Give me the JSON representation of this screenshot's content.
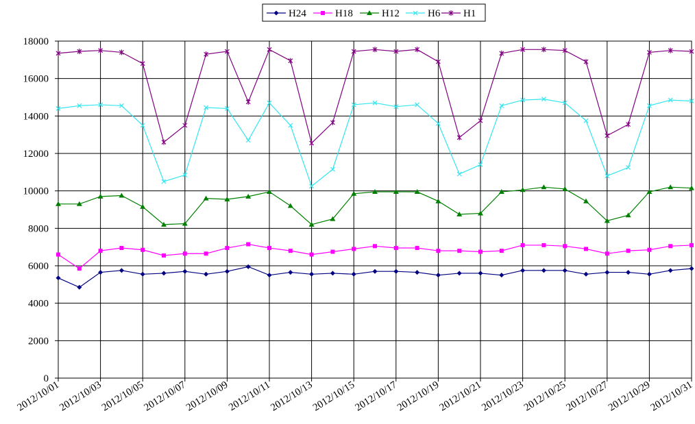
{
  "chart_data": {
    "type": "line",
    "categories": [
      "2012/10/01",
      null,
      "2012/10/03",
      null,
      "2012/10/05",
      null,
      "2012/10/07",
      null,
      "2012/10/09",
      null,
      "2012/10/11",
      null,
      "2012/10/13",
      null,
      "2012/10/15",
      null,
      "2012/10/17",
      null,
      "2012/10/19",
      null,
      "2012/10/21",
      null,
      "2012/10/23",
      null,
      "2012/10/25",
      null,
      "2012/10/27",
      null,
      "2012/10/29",
      null,
      "2012/10/31"
    ],
    "series": [
      {
        "name": "H24",
        "color": "#000080",
        "marker": "diamond",
        "values": [
          5350,
          4850,
          5650,
          5750,
          5550,
          5600,
          5700,
          5550,
          5700,
          5950,
          5500,
          5650,
          5550,
          5600,
          5550,
          5700,
          5700,
          5650,
          5500,
          5600,
          5600,
          5500,
          5750,
          5750,
          5750,
          5550,
          5650,
          5650,
          5550,
          5750,
          5850
        ]
      },
      {
        "name": "H18",
        "color": "#ff00ff",
        "marker": "square",
        "values": [
          6600,
          5850,
          6800,
          6950,
          6850,
          6550,
          6650,
          6650,
          6950,
          7150,
          6950,
          6800,
          6600,
          6750,
          6900,
          7050,
          6950,
          6950,
          6800,
          6800,
          6750,
          6800,
          7100,
          7100,
          7050,
          6900,
          6650,
          6800,
          6850,
          7050,
          7100
        ]
      },
      {
        "name": "H12",
        "color": "#008000",
        "marker": "triangle",
        "values": [
          9300,
          9300,
          9700,
          9750,
          9150,
          8200,
          8250,
          9600,
          9550,
          9700,
          9950,
          9200,
          8200,
          8500,
          9850,
          9950,
          9950,
          9950,
          9450,
          8750,
          8800,
          9950,
          10050,
          10200,
          10100,
          9450,
          8400,
          8700,
          9950,
          10200,
          10150
        ]
      },
      {
        "name": "H6",
        "color": "#33e6f0",
        "marker": "x",
        "values": [
          14400,
          14550,
          14600,
          14550,
          13500,
          10500,
          10850,
          14450,
          14400,
          12700,
          14700,
          13500,
          10250,
          11150,
          14600,
          14700,
          14500,
          14600,
          13600,
          10900,
          11400,
          14550,
          14850,
          14900,
          14700,
          13750,
          10800,
          11250,
          14550,
          14850,
          14800
        ]
      },
      {
        "name": "H1",
        "color": "#800080",
        "marker": "star",
        "values": [
          17350,
          17450,
          17500,
          17400,
          16800,
          12600,
          13500,
          17300,
          17450,
          14750,
          17550,
          16950,
          12550,
          13650,
          17450,
          17550,
          17450,
          17550,
          16900,
          12850,
          13750,
          17350,
          17550,
          17550,
          17500,
          16900,
          12950,
          13550,
          17400,
          17500,
          17450
        ]
      }
    ],
    "ylim": [
      0,
      18000
    ],
    "yticks": [
      0,
      2000,
      4000,
      6000,
      8000,
      10000,
      12000,
      14000,
      16000,
      18000
    ],
    "grid": true,
    "legend": "top"
  }
}
